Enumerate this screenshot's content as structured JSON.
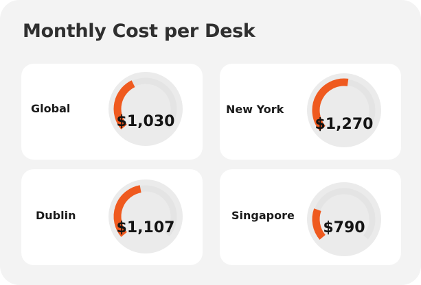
{
  "title": "Monthly Cost per Desk",
  "colors": {
    "accent": "#ef5a1f",
    "track": "#e4e4e4",
    "gauge_bg": "#ebebeb",
    "card": "#ffffff",
    "panel": "#f3f3f3"
  },
  "cards": [
    {
      "city": "Global",
      "value": "$1,030",
      "fill": 0.4
    },
    {
      "city": "New York",
      "value": "$1,270",
      "fill": 0.53
    },
    {
      "city": "Dublin",
      "value": "$1,107",
      "fill": 0.46
    },
    {
      "city": "Singapore",
      "value": "$790",
      "fill": 0.23
    }
  ]
}
